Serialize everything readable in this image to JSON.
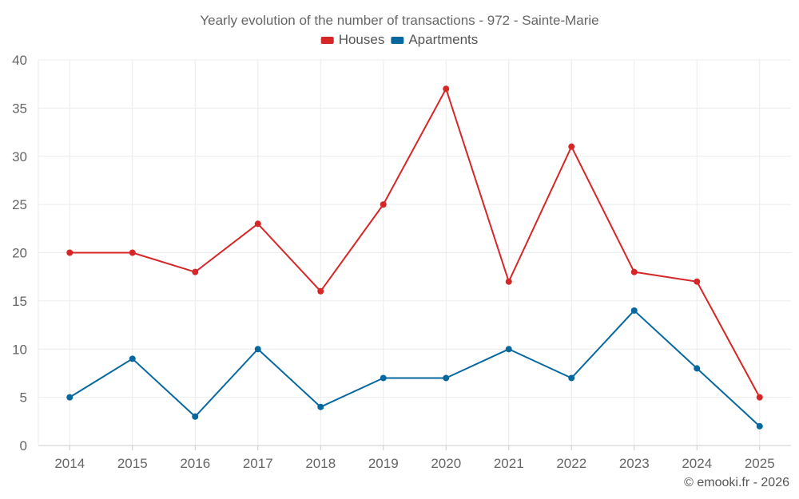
{
  "chart_data": {
    "type": "line",
    "title": "Yearly evolution of the number of transactions - 972 - Sainte-Marie",
    "categories": [
      "2014",
      "2015",
      "2016",
      "2017",
      "2018",
      "2019",
      "2020",
      "2021",
      "2022",
      "2023",
      "2024",
      "2025"
    ],
    "series": [
      {
        "name": "Houses",
        "color": "#d62728",
        "values": [
          20,
          20,
          18,
          23,
          16,
          25,
          37,
          17,
          31,
          18,
          17,
          5
        ]
      },
      {
        "name": "Apartments",
        "color": "#07689f",
        "values": [
          5,
          9,
          3,
          10,
          4,
          7,
          7,
          10,
          7,
          14,
          8,
          2
        ]
      }
    ],
    "ylim": [
      0,
      40
    ],
    "yticks": [
      0,
      5,
      10,
      15,
      20,
      25,
      30,
      35,
      40
    ],
    "xlabel": "",
    "ylabel": "",
    "grid": true,
    "legend_position": "top-center"
  },
  "footer": {
    "credit": "© emooki.fr - 2026"
  }
}
